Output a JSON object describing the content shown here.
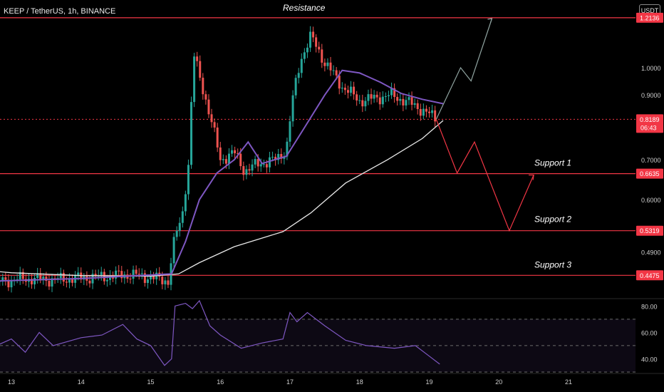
{
  "header": {
    "symbol_title": "KEEP / TetherUS, 1h, BINANCE",
    "currency_badge": "USDT"
  },
  "colors": {
    "up": "#26a69a",
    "down": "#ef5350",
    "level": "#f23645",
    "ma_fast": "#7e57c2",
    "ma_slow": "#e8e8e8",
    "rsi": "#7e57c2",
    "projection_up": "#8fa3a0",
    "projection_down": "#f23645"
  },
  "chart_data": {
    "type": "candlestick",
    "pair": "KEEP/USDT",
    "timeframe": "1h",
    "y_scale": "log",
    "ylim": [
      0.41,
      1.3
    ],
    "x_tick_labels": [
      "13",
      "14",
      "15",
      "16",
      "17",
      "18",
      "19",
      "20",
      "21"
    ],
    "y_tick_labels": [
      "1.0000",
      "0.9000",
      "0.7000",
      "0.6000",
      "0.4900"
    ],
    "y_tick_values": [
      1.0,
      0.9,
      0.7,
      0.6,
      0.49
    ],
    "horizontal_levels": [
      {
        "value": 1.2136,
        "label": "1.2136",
        "annotation": "Resistance"
      },
      {
        "value": 0.6635,
        "label": "0.6635",
        "annotation": "Support 1"
      },
      {
        "value": 0.5319,
        "label": "0.5319",
        "annotation": "Support 2"
      },
      {
        "value": 0.4475,
        "label": "0.4475",
        "annotation": "Support 3"
      }
    ],
    "last_price": {
      "value": 0.8189,
      "label": "0.8189",
      "countdown": "06:43"
    },
    "price_anchors": [
      {
        "day": 12.0,
        "price": 0.436
      },
      {
        "day": 12.4,
        "price": 0.434
      },
      {
        "day": 12.8,
        "price": 0.437
      },
      {
        "day": 13.2,
        "price": 0.442
      },
      {
        "day": 13.6,
        "price": 0.44
      },
      {
        "day": 14.0,
        "price": 0.443
      },
      {
        "day": 14.4,
        "price": 0.446
      },
      {
        "day": 14.7,
        "price": 0.449
      },
      {
        "day": 14.95,
        "price": 0.445
      },
      {
        "day": 15.25,
        "price": 0.438
      },
      {
        "day": 15.35,
        "price": 0.52
      },
      {
        "day": 15.45,
        "price": 0.56
      },
      {
        "day": 15.55,
        "price": 0.7
      },
      {
        "day": 15.62,
        "price": 1.05
      },
      {
        "day": 15.72,
        "price": 0.95
      },
      {
        "day": 15.85,
        "price": 0.83
      },
      {
        "day": 16.0,
        "price": 0.7
      },
      {
        "day": 16.2,
        "price": 0.72
      },
      {
        "day": 16.35,
        "price": 0.67
      },
      {
        "day": 16.55,
        "price": 0.69
      },
      {
        "day": 16.8,
        "price": 0.7
      },
      {
        "day": 16.95,
        "price": 0.73
      },
      {
        "day": 17.05,
        "price": 0.9
      },
      {
        "day": 17.15,
        "price": 1.03
      },
      {
        "day": 17.3,
        "price": 1.13
      },
      {
        "day": 17.5,
        "price": 1.02
      },
      {
        "day": 17.75,
        "price": 0.93
      },
      {
        "day": 18.0,
        "price": 0.88
      },
      {
        "day": 18.25,
        "price": 0.89
      },
      {
        "day": 18.45,
        "price": 0.9
      },
      {
        "day": 18.65,
        "price": 0.88
      },
      {
        "day": 18.9,
        "price": 0.85
      },
      {
        "day": 19.1,
        "price": 0.819
      }
    ],
    "ma_fast": [
      {
        "day": 12.0,
        "value": 0.435
      },
      {
        "day": 14.0,
        "value": 0.442
      },
      {
        "day": 14.8,
        "value": 0.447
      },
      {
        "day": 15.3,
        "value": 0.45
      },
      {
        "day": 15.5,
        "value": 0.51
      },
      {
        "day": 15.7,
        "value": 0.6
      },
      {
        "day": 15.95,
        "value": 0.665
      },
      {
        "day": 16.2,
        "value": 0.7
      },
      {
        "day": 16.4,
        "value": 0.75
      },
      {
        "day": 16.6,
        "value": 0.69
      },
      {
        "day": 16.95,
        "value": 0.71
      },
      {
        "day": 17.2,
        "value": 0.79
      },
      {
        "day": 17.5,
        "value": 0.9
      },
      {
        "day": 17.75,
        "value": 0.99
      },
      {
        "day": 18.0,
        "value": 0.98
      },
      {
        "day": 18.3,
        "value": 0.945
      },
      {
        "day": 18.6,
        "value": 0.905
      },
      {
        "day": 18.9,
        "value": 0.885
      },
      {
        "day": 19.2,
        "value": 0.87
      }
    ],
    "ma_slow": [
      {
        "day": 12.0,
        "value": 0.463
      },
      {
        "day": 13.0,
        "value": 0.452
      },
      {
        "day": 14.0,
        "value": 0.447
      },
      {
        "day": 15.0,
        "value": 0.446
      },
      {
        "day": 15.4,
        "value": 0.45
      },
      {
        "day": 15.7,
        "value": 0.47
      },
      {
        "day": 16.2,
        "value": 0.5
      },
      {
        "day": 16.9,
        "value": 0.53
      },
      {
        "day": 17.3,
        "value": 0.57
      },
      {
        "day": 17.8,
        "value": 0.64
      },
      {
        "day": 18.4,
        "value": 0.7
      },
      {
        "day": 18.9,
        "value": 0.76
      },
      {
        "day": 19.2,
        "value": 0.815
      }
    ],
    "projection_bullish": [
      {
        "day": 19.1,
        "value": 0.819
      },
      {
        "day": 19.45,
        "value": 1.0
      },
      {
        "day": 19.6,
        "value": 0.95
      },
      {
        "day": 19.9,
        "value": 1.21
      }
    ],
    "projection_bearish": [
      {
        "day": 19.1,
        "value": 0.819
      },
      {
        "day": 19.4,
        "value": 0.665
      },
      {
        "day": 19.65,
        "value": 0.75
      },
      {
        "day": 20.15,
        "value": 0.532
      },
      {
        "day": 20.5,
        "value": 0.66
      }
    ],
    "rsi": {
      "ylim": [
        30,
        85
      ],
      "tick_labels": [
        "80.00",
        "60.00",
        "40.00"
      ],
      "tick_values": [
        80,
        60,
        40
      ],
      "band": [
        30,
        70
      ],
      "midline": 50,
      "values": [
        {
          "day": 12.0,
          "value": 50
        },
        {
          "day": 12.3,
          "value": 45
        },
        {
          "day": 12.5,
          "value": 58
        },
        {
          "day": 12.7,
          "value": 48
        },
        {
          "day": 13.0,
          "value": 55
        },
        {
          "day": 13.2,
          "value": 45
        },
        {
          "day": 13.4,
          "value": 60
        },
        {
          "day": 13.6,
          "value": 50
        },
        {
          "day": 14.0,
          "value": 56
        },
        {
          "day": 14.3,
          "value": 58
        },
        {
          "day": 14.6,
          "value": 66
        },
        {
          "day": 14.8,
          "value": 55
        },
        {
          "day": 15.0,
          "value": 50
        },
        {
          "day": 15.2,
          "value": 35
        },
        {
          "day": 15.3,
          "value": 40
        },
        {
          "day": 15.35,
          "value": 80
        },
        {
          "day": 15.5,
          "value": 82
        },
        {
          "day": 15.6,
          "value": 78
        },
        {
          "day": 15.7,
          "value": 84
        },
        {
          "day": 15.85,
          "value": 65
        },
        {
          "day": 16.0,
          "value": 58
        },
        {
          "day": 16.3,
          "value": 48
        },
        {
          "day": 16.6,
          "value": 52
        },
        {
          "day": 16.9,
          "value": 55
        },
        {
          "day": 17.0,
          "value": 75
        },
        {
          "day": 17.1,
          "value": 68
        },
        {
          "day": 17.25,
          "value": 75
        },
        {
          "day": 17.5,
          "value": 65
        },
        {
          "day": 17.8,
          "value": 54
        },
        {
          "day": 18.1,
          "value": 50
        },
        {
          "day": 18.5,
          "value": 48
        },
        {
          "day": 18.8,
          "value": 50
        },
        {
          "day": 19.0,
          "value": 42
        },
        {
          "day": 19.15,
          "value": 36
        }
      ]
    }
  }
}
